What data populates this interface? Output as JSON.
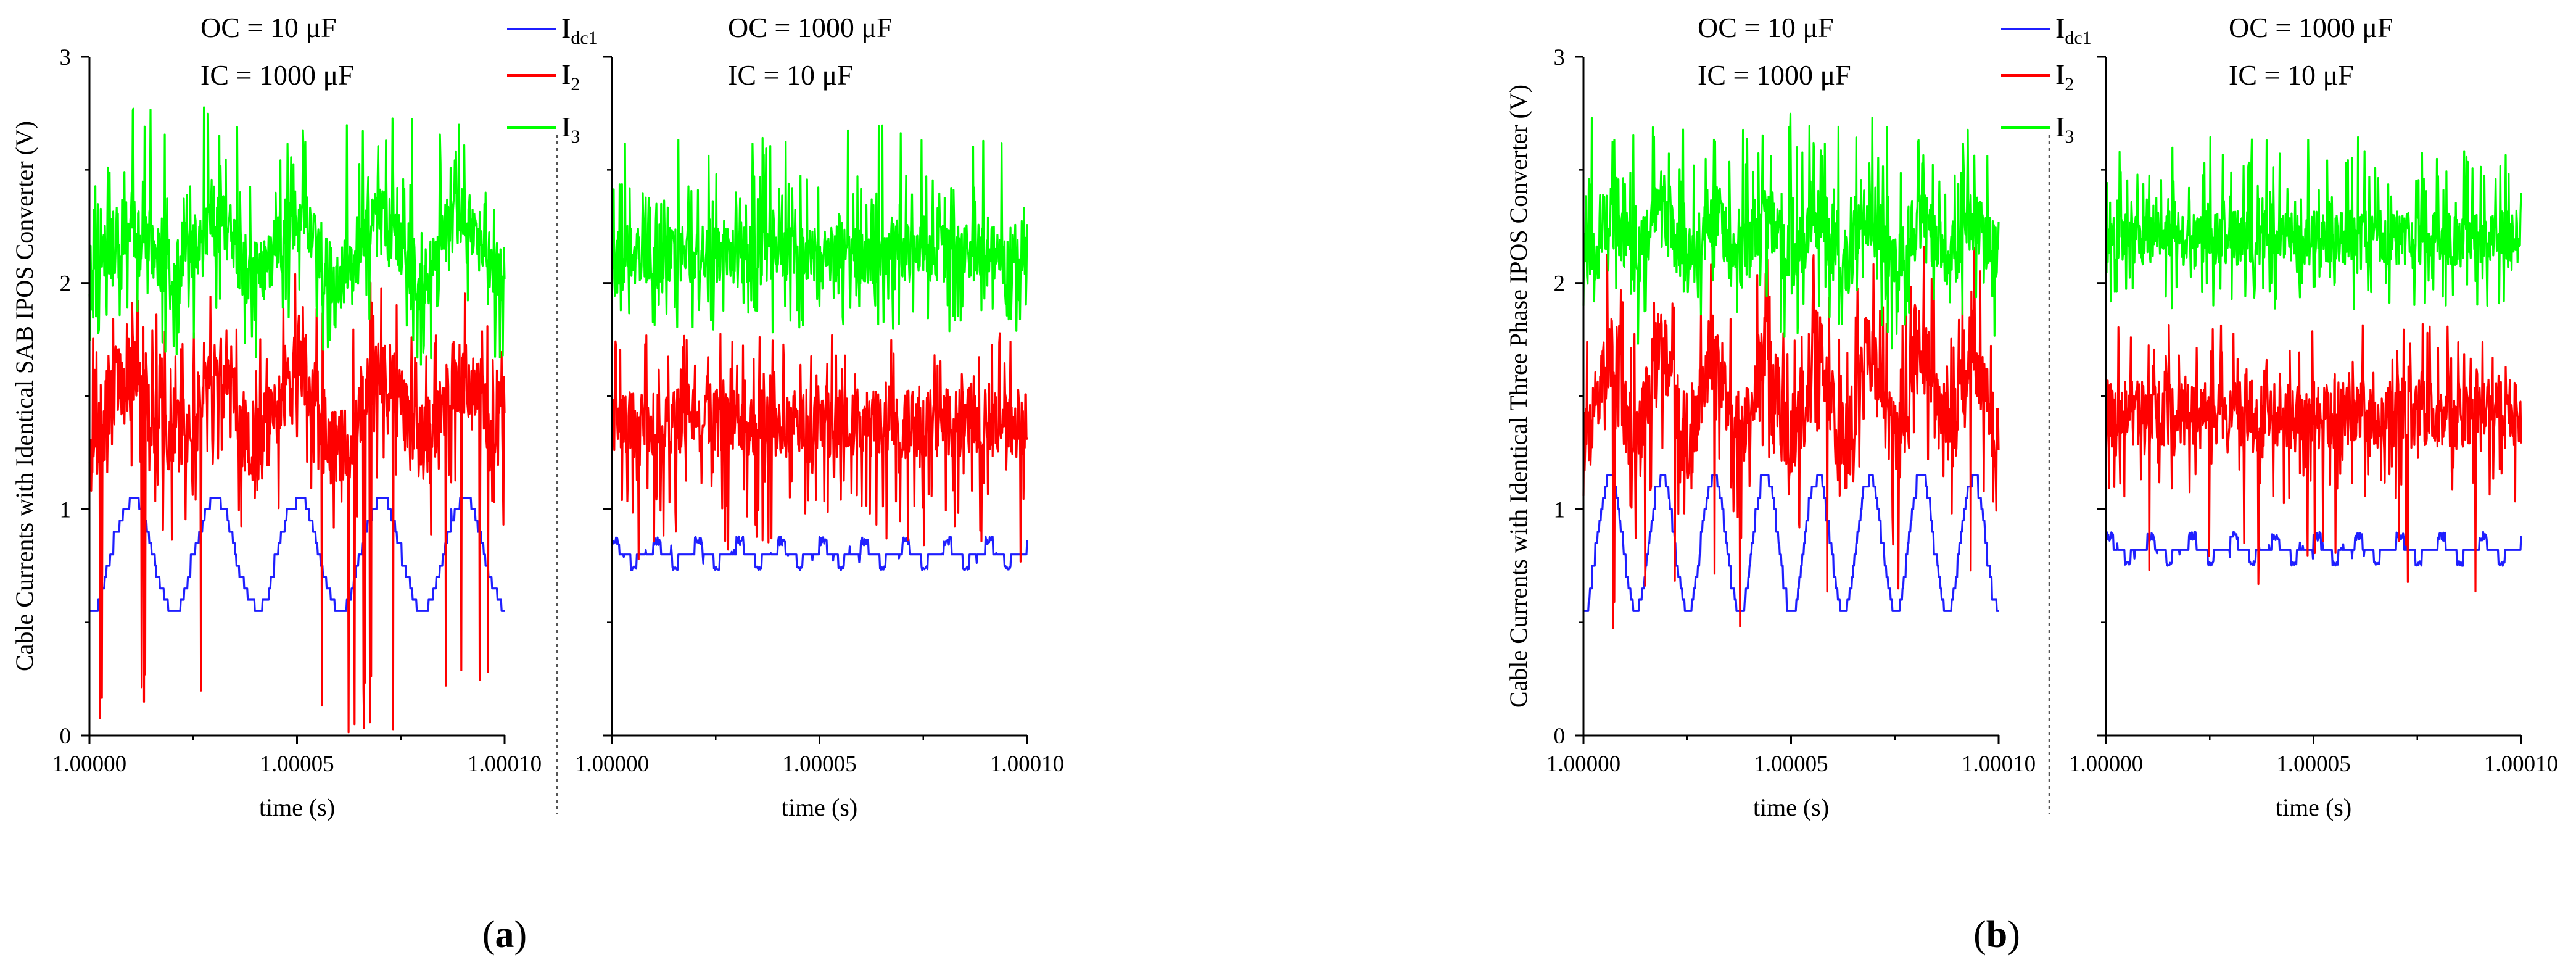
{
  "colors": {
    "I_dc1": "#1f1fff",
    "I_2": "#ff0000",
    "I_3": "#00ff00",
    "axis": "#000000",
    "separator": "#555555"
  },
  "figures": [
    {
      "label_open": "(",
      "label_letter": "a",
      "label_close": ")",
      "ylabel": "Cable Currents with Identical SAB IPOS Converter (V)",
      "legend": [
        {
          "main": "I",
          "sub": "dc1",
          "color_key": "I_dc1"
        },
        {
          "main": "I",
          "sub": "2",
          "color_key": "I_2"
        },
        {
          "main": "I",
          "sub": "3",
          "color_key": "I_3"
        }
      ],
      "subplots": [
        {
          "annot": [
            "OC = 10 μF",
            "IC = 1000 μF"
          ],
          "xlabel": "time (s)",
          "xticks": [
            "1.00000",
            "1.00005",
            "1.00010"
          ],
          "yticks": [
            "0",
            "1",
            "2",
            "3"
          ],
          "show_yticks": true
        },
        {
          "annot": [
            "OC = 1000 μF",
            "IC = 10 μF"
          ],
          "xlabel": "time (s)",
          "xticks": [
            "1.00000",
            "1.00005",
            "1.00010"
          ],
          "yticks": [],
          "show_yticks": false
        }
      ]
    },
    {
      "label_open": "(",
      "label_letter": "b",
      "label_close": ")",
      "ylabel": "Cable Currents with Identical Three Phase IPOS Converter (V)",
      "legend": [
        {
          "main": "I",
          "sub": "dc1",
          "color_key": "I_dc1"
        },
        {
          "main": "I",
          "sub": "2",
          "color_key": "I_2"
        },
        {
          "main": "I",
          "sub": "3",
          "color_key": "I_3"
        }
      ],
      "subplots": [
        {
          "annot": [
            "OC = 10 μF",
            "IC = 1000 μF"
          ],
          "xlabel": "time (s)",
          "xticks": [
            "1.00000",
            "1.00005",
            "1.00010"
          ],
          "yticks": [
            "0",
            "1",
            "2",
            "3"
          ],
          "show_yticks": true
        },
        {
          "annot": [
            "OC = 1000 μF",
            "IC = 10 μF"
          ],
          "xlabel": "time (s)",
          "xticks": [
            "1.00000",
            "1.00005",
            "1.00010"
          ],
          "yticks": [],
          "show_yticks": false
        }
      ]
    }
  ],
  "chart_data": [
    {
      "type": "line",
      "title": "(a) left: OC = 10 μF, IC = 1000 μF",
      "xlabel": "time (s)",
      "ylabel": "Cable Currents with Identical SAB IPOS Converter (V)",
      "xlim": [
        1.0,
        1.0001
      ],
      "ylim": [
        0,
        3
      ],
      "series": [
        {
          "name": "I_dc1",
          "color_key": "I_dc1",
          "mean": 0.8,
          "osc_amp": 0.25,
          "osc_periods": 5,
          "noise": 0.02,
          "step": 0.05,
          "shape": "stairs",
          "seed": 11
        },
        {
          "name": "I_2",
          "color_key": "I_2",
          "mean": 1.45,
          "osc_amp": 0.15,
          "osc_periods": 5,
          "noise": 0.3,
          "spike_down_to": 0.0,
          "shape": "noisy",
          "seed": 12
        },
        {
          "name": "I_3",
          "color_key": "I_3",
          "mean": 2.15,
          "osc_amp": 0.12,
          "osc_periods": 5,
          "noise": 0.25,
          "spike_up_to": 2.8,
          "shape": "noisy",
          "seed": 13
        }
      ]
    },
    {
      "type": "line",
      "title": "(a) right: OC = 1000 μF, IC = 10 μF",
      "xlabel": "time (s)",
      "ylabel": "",
      "xlim": [
        1.0,
        1.0001
      ],
      "ylim": [
        0,
        3
      ],
      "series": [
        {
          "name": "I_dc1",
          "color_key": "I_dc1",
          "mean": 0.8,
          "osc_amp": 0.0,
          "osc_periods": 0,
          "noise": 0.04,
          "step": 0.06,
          "shape": "bursts",
          "seed": 21
        },
        {
          "name": "I_2",
          "color_key": "I_2",
          "mean": 1.38,
          "osc_amp": 0.0,
          "osc_periods": 0,
          "noise": 0.25,
          "spike_down_to": 0.75,
          "shape": "noisy",
          "seed": 22
        },
        {
          "name": "I_3",
          "color_key": "I_3",
          "mean": 2.13,
          "osc_amp": 0.0,
          "osc_periods": 0,
          "noise": 0.22,
          "spike_up_to": 2.7,
          "shape": "noisy",
          "seed": 23
        }
      ]
    },
    {
      "type": "line",
      "title": "(b) left: OC = 10 μF, IC = 1000 μF",
      "xlabel": "time (s)",
      "ylabel": "Cable Currents with Identical Three Phase IPOS Converter (V)",
      "xlim": [
        1.0,
        1.0001
      ],
      "ylim": [
        0,
        3
      ],
      "series": [
        {
          "name": "I_dc1",
          "color_key": "I_dc1",
          "mean": 0.85,
          "osc_amp": 0.3,
          "osc_periods": 8,
          "noise": 0.02,
          "step": 0.05,
          "shape": "stairs",
          "seed": 31
        },
        {
          "name": "I_2",
          "color_key": "I_2",
          "mean": 1.5,
          "osc_amp": 0.2,
          "osc_periods": 8,
          "noise": 0.3,
          "spike_down_to": 0.45,
          "shape": "noisy",
          "seed": 32
        },
        {
          "name": "I_3",
          "color_key": "I_3",
          "mean": 2.2,
          "osc_amp": 0.1,
          "osc_periods": 8,
          "noise": 0.25,
          "spike_up_to": 2.75,
          "shape": "noisy",
          "seed": 33
        }
      ]
    },
    {
      "type": "line",
      "title": "(b) right: OC = 1000 μF, IC = 10 μF",
      "xlabel": "time (s)",
      "ylabel": "",
      "xlim": [
        1.0,
        1.0001
      ],
      "ylim": [
        0,
        3
      ],
      "series": [
        {
          "name": "I_dc1",
          "color_key": "I_dc1",
          "mean": 0.82,
          "osc_amp": 0.0,
          "osc_periods": 0,
          "noise": 0.04,
          "step": 0.06,
          "shape": "bursts",
          "seed": 41
        },
        {
          "name": "I_2",
          "color_key": "I_2",
          "mean": 1.42,
          "osc_amp": 0.0,
          "osc_periods": 0,
          "noise": 0.25,
          "spike_down_to": 0.6,
          "shape": "noisy",
          "seed": 42
        },
        {
          "name": "I_3",
          "color_key": "I_3",
          "mean": 2.2,
          "osc_amp": 0.0,
          "osc_periods": 0,
          "noise": 0.2,
          "spike_up_to": 2.65,
          "shape": "noisy",
          "seed": 43
        }
      ]
    }
  ]
}
